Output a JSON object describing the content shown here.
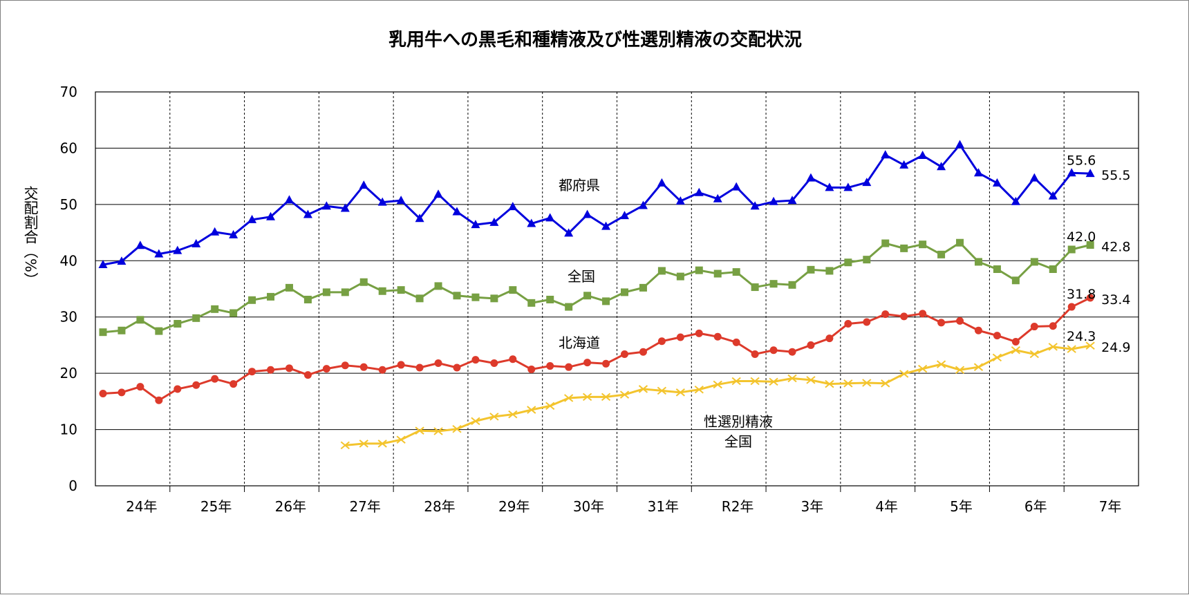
{
  "chart_data": {
    "type": "line",
    "title": "乳用牛への黒毛和種精液及び性選別精液の交配状況",
    "ylabel": "交配割合（%）",
    "xlabel": "",
    "ylim": [
      0,
      70
    ],
    "yticks": [
      0,
      10,
      20,
      30,
      40,
      50,
      60,
      70
    ],
    "year_labels": [
      "24年",
      "25年",
      "26年",
      "27年",
      "28年",
      "29年",
      "30年",
      "31年",
      "R2年",
      "3年",
      "4年",
      "5年",
      "6年",
      "7年"
    ],
    "points_per_year": 4,
    "grid": true,
    "series": [
      {
        "name": "都府県",
        "color": "#0000dd",
        "marker": "triangle",
        "start_index": 0,
        "values": [
          39.3,
          39.9,
          42.7,
          41.2,
          41.8,
          43.0,
          45.1,
          44.6,
          47.3,
          47.8,
          50.8,
          48.2,
          49.7,
          49.3,
          53.4,
          50.4,
          50.7,
          47.5,
          51.8,
          48.7,
          46.4,
          46.8,
          49.6,
          46.6,
          47.6,
          44.9,
          48.2,
          46.1,
          48.0,
          49.8,
          53.8,
          50.6,
          52.1,
          51.0,
          53.1,
          49.7,
          50.5,
          50.7,
          54.7,
          53.0,
          53.0,
          53.9,
          58.8,
          57.0,
          58.7,
          56.7,
          60.6,
          55.6,
          53.8,
          50.5,
          54.7,
          51.5,
          55.6,
          55.5
        ],
        "end_labels": [
          "55.6",
          "55.5"
        ]
      },
      {
        "name": "全国",
        "color": "#77a043",
        "marker": "square",
        "start_index": 0,
        "values": [
          27.3,
          27.6,
          29.5,
          27.5,
          28.8,
          29.8,
          31.4,
          30.7,
          33.0,
          33.6,
          35.2,
          33.1,
          34.4,
          34.4,
          36.2,
          34.6,
          34.8,
          33.3,
          35.5,
          33.8,
          33.5,
          33.3,
          34.8,
          32.5,
          33.1,
          31.8,
          33.8,
          32.8,
          34.4,
          35.2,
          38.2,
          37.2,
          38.3,
          37.7,
          38.0,
          35.3,
          35.9,
          35.7,
          38.4,
          38.2,
          39.7,
          40.2,
          43.1,
          42.2,
          42.9,
          41.1,
          43.2,
          39.8,
          38.5,
          36.5,
          39.8,
          38.5,
          42.0,
          42.8
        ],
        "end_labels": [
          "42.0",
          "42.8"
        ]
      },
      {
        "name": "北海道",
        "color": "#dd3a2b",
        "marker": "circle",
        "start_index": 0,
        "values": [
          16.4,
          16.6,
          17.6,
          15.2,
          17.2,
          17.9,
          19.0,
          18.1,
          20.3,
          20.6,
          20.9,
          19.7,
          20.8,
          21.4,
          21.1,
          20.6,
          21.5,
          21.0,
          21.8,
          21.0,
          22.4,
          21.8,
          22.5,
          20.7,
          21.3,
          21.1,
          21.9,
          21.7,
          23.4,
          23.8,
          25.7,
          26.4,
          27.1,
          26.5,
          25.5,
          23.4,
          24.1,
          23.8,
          25.0,
          26.2,
          28.8,
          29.1,
          30.5,
          30.1,
          30.6,
          29.0,
          29.3,
          27.6,
          26.7,
          25.6,
          28.3,
          28.4,
          31.8,
          33.4
        ],
        "end_labels": [
          "31.8",
          "33.4"
        ]
      },
      {
        "name": "性選別精液\n全国",
        "label_lines": [
          "性選別精液",
          "全国"
        ],
        "color": "#f3c42e",
        "marker": "x",
        "start_index": 13,
        "values": [
          7.2,
          7.5,
          7.5,
          8.2,
          9.8,
          9.7,
          10.1,
          11.5,
          12.3,
          12.7,
          13.5,
          14.2,
          15.6,
          15.8,
          15.8,
          16.2,
          17.2,
          16.9,
          16.6,
          17.1,
          18.0,
          18.6,
          18.6,
          18.5,
          19.1,
          18.8,
          18.1,
          18.2,
          18.3,
          18.2,
          19.9,
          20.8,
          21.6,
          20.6,
          21.1,
          22.8,
          24.1,
          23.4,
          24.7,
          24.3,
          24.9
        ],
        "end_labels": [
          "24.3",
          "24.9"
        ]
      }
    ]
  }
}
